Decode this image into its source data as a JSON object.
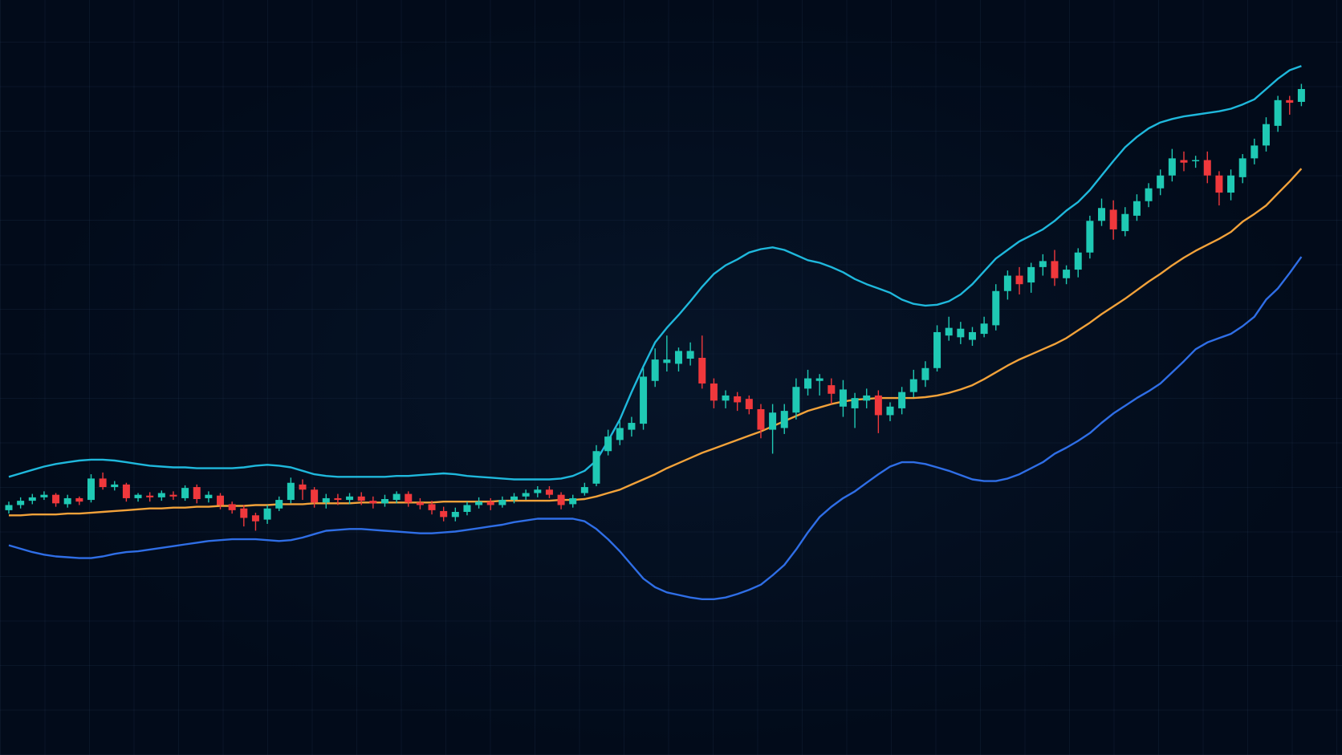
{
  "chart_data": {
    "type": "candlestick",
    "up_color": "#1fc9b4",
    "down_color": "#f0383c",
    "ylim": [
      0,
      882
    ],
    "grid": true,
    "open": [
      286,
      292,
      297,
      301,
      304,
      293,
      300,
      298,
      323,
      313,
      316,
      300,
      303,
      301,
      304,
      300,
      313,
      300,
      303,
      293,
      288,
      280,
      275,
      288,
      298,
      316,
      310,
      295,
      300,
      298,
      302,
      297,
      294,
      298,
      305,
      295,
      293,
      285,
      278,
      284,
      292,
      296,
      292,
      298,
      302,
      306,
      310,
      304,
      293,
      306,
      317,
      355,
      368,
      380,
      387,
      437,
      458,
      457,
      463,
      464,
      434,
      414,
      419,
      416,
      404,
      380,
      382,
      400,
      428,
      437,
      432,
      407,
      405,
      414,
      420,
      397,
      405,
      424,
      438,
      452,
      490,
      488,
      485,
      492,
      502,
      542,
      560,
      552,
      570,
      577,
      557,
      567,
      587,
      624,
      637,
      612,
      630,
      647,
      662,
      677,
      695,
      694,
      695,
      677,
      657,
      675,
      697,
      712,
      735,
      765,
      763
    ],
    "high": [
      296,
      301,
      305,
      308,
      306,
      304,
      302,
      328,
      330,
      320,
      318,
      306,
      307,
      309,
      308,
      315,
      316,
      308,
      306,
      296,
      292,
      283,
      292,
      302,
      324,
      322,
      313,
      305,
      305,
      306,
      307,
      302,
      304,
      308,
      308,
      300,
      297,
      290,
      289,
      296,
      301,
      300,
      302,
      306,
      310,
      314,
      314,
      307,
      304,
      318,
      362,
      380,
      390,
      395,
      452,
      475,
      490,
      476,
      482,
      490,
      440,
      426,
      424,
      420,
      410,
      410,
      410,
      440,
      450,
      445,
      440,
      438,
      423,
      428,
      426,
      412,
      430,
      450,
      460,
      502,
      512,
      506,
      500,
      512,
      550,
      566,
      570,
      575,
      585,
      590,
      572,
      592,
      630,
      650,
      648,
      640,
      655,
      668,
      684,
      708,
      705,
      700,
      705,
      682,
      684,
      702,
      720,
      745,
      770,
      770,
      784
    ],
    "low": [
      282,
      288,
      293,
      298,
      290,
      289,
      292,
      295,
      310,
      309,
      296,
      296,
      296,
      297,
      298,
      297,
      294,
      295,
      287,
      282,
      267,
      262,
      270,
      285,
      294,
      298,
      289,
      288,
      292,
      293,
      292,
      288,
      290,
      294,
      290,
      287,
      281,
      273,
      273,
      280,
      288,
      286,
      289,
      294,
      298,
      301,
      300,
      287,
      289,
      303,
      314,
      350,
      362,
      372,
      380,
      430,
      448,
      448,
      455,
      428,
      405,
      405,
      402,
      398,
      370,
      352,
      375,
      392,
      420,
      420,
      410,
      395,
      382,
      405,
      376,
      390,
      398,
      418,
      430,
      448,
      484,
      480,
      478,
      488,
      496,
      532,
      538,
      540,
      560,
      548,
      550,
      558,
      580,
      618,
      602,
      606,
      624,
      640,
      654,
      670,
      682,
      686,
      668,
      642,
      648,
      668,
      690,
      705,
      728,
      748,
      758
    ],
    "close": [
      292,
      297,
      301,
      304,
      294,
      300,
      296,
      323,
      313,
      316,
      300,
      304,
      301,
      306,
      302,
      312,
      299,
      304,
      292,
      286,
      277,
      273,
      288,
      298,
      318,
      310,
      295,
      300,
      298,
      302,
      297,
      294,
      299,
      305,
      295,
      292,
      286,
      278,
      284,
      292,
      296,
      292,
      298,
      302,
      306,
      310,
      304,
      292,
      300,
      313,
      355,
      372,
      382,
      388,
      442,
      462,
      462,
      472,
      472,
      434,
      414,
      420,
      412,
      404,
      380,
      400,
      402,
      430,
      440,
      440,
      422,
      427,
      417,
      420,
      397,
      407,
      424,
      439,
      452,
      494,
      499,
      498,
      494,
      504,
      542,
      560,
      550,
      570,
      577,
      557,
      567,
      587,
      624,
      639,
      614,
      632,
      647,
      662,
      677,
      697,
      692,
      695,
      677,
      657,
      677,
      697,
      712,
      737,
      765,
      762,
      778
    ],
    "series": [
      {
        "color": "#1fb8dc",
        "values": [
          325,
          329,
          333,
          337,
          340,
          342,
          344,
          345,
          345,
          344,
          342,
          340,
          338,
          337,
          336,
          336,
          335,
          335,
          335,
          335,
          336,
          338,
          339,
          338,
          336,
          332,
          328,
          326,
          325,
          325,
          325,
          325,
          325,
          326,
          326,
          327,
          328,
          329,
          328,
          326,
          325,
          324,
          323,
          322,
          322,
          322,
          322,
          323,
          326,
          332,
          344,
          367,
          392,
          424,
          454,
          482,
          499,
          514,
          530,
          547,
          562,
          572,
          579,
          587,
          591,
          593,
          590,
          584,
          578,
          575,
          570,
          564,
          556,
          550,
          545,
          540,
          532,
          527,
          525,
          526,
          530,
          538,
          550,
          565,
          580,
          590,
          600,
          607,
          614,
          624,
          636,
          646,
          660,
          677,
          694,
          710,
          722,
          732,
          739,
          743,
          746,
          748,
          750,
          752,
          755,
          760,
          766,
          778,
          790,
          800,
          805
        ]
      },
      {
        "color": "#f2a23a",
        "values": [
          280,
          280,
          281,
          281,
          281,
          282,
          282,
          283,
          284,
          285,
          286,
          287,
          288,
          288,
          289,
          289,
          290,
          290,
          291,
          291,
          291,
          292,
          292,
          293,
          293,
          293,
          294,
          294,
          294,
          294,
          295,
          295,
          295,
          295,
          295,
          295,
          295,
          296,
          296,
          296,
          296,
          296,
          297,
          297,
          297,
          297,
          297,
          298,
          298,
          299,
          302,
          306,
          310,
          316,
          322,
          328,
          335,
          341,
          347,
          353,
          358,
          363,
          368,
          373,
          378,
          384,
          390,
          396,
          402,
          406,
          410,
          413,
          415,
          416,
          417,
          417,
          417,
          417,
          418,
          420,
          423,
          427,
          432,
          439,
          447,
          455,
          462,
          468,
          474,
          480,
          487,
          496,
          505,
          515,
          524,
          533,
          543,
          553,
          562,
          572,
          581,
          589,
          596,
          603,
          611,
          623,
          632,
          642,
          656,
          670,
          685
        ]
      },
      {
        "color": "#2f6ee6",
        "values": [
          245,
          241,
          237,
          234,
          232,
          231,
          230,
          230,
          232,
          235,
          237,
          238,
          240,
          242,
          244,
          246,
          248,
          250,
          251,
          252,
          252,
          252,
          251,
          250,
          251,
          254,
          258,
          262,
          263,
          264,
          264,
          263,
          262,
          261,
          260,
          259,
          259,
          260,
          261,
          263,
          265,
          267,
          269,
          272,
          274,
          276,
          276,
          276,
          276,
          273,
          264,
          252,
          238,
          222,
          206,
          196,
          190,
          187,
          184,
          182,
          182,
          184,
          188,
          193,
          199,
          210,
          222,
          240,
          260,
          278,
          290,
          300,
          308,
          318,
          328,
          337,
          342,
          342,
          340,
          336,
          332,
          327,
          322,
          320,
          320,
          323,
          328,
          335,
          342,
          352,
          359,
          367,
          376,
          388,
          399,
          408,
          417,
          425,
          434,
          447,
          460,
          474,
          482,
          487,
          492,
          501,
          512,
          532,
          545,
          563,
          582
        ]
      }
    ]
  }
}
